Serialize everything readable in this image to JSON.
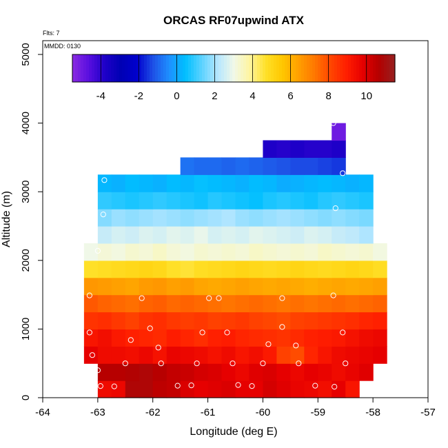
{
  "chart_data": {
    "type": "heatmap",
    "title": "ORCAS RF07upwind ATX",
    "flights_label": "Flts: 7",
    "date_label": "MMDD: 0130",
    "xlabel": "Longitude (deg E)",
    "ylabel": "Altitude (m)",
    "xlim": [
      -64,
      -57
    ],
    "ylim": [
      0,
      5200
    ],
    "x_ticks": [
      "-64",
      "-63",
      "-62",
      "-61",
      "-60",
      "-59",
      "-58",
      "-57"
    ],
    "y_ticks": [
      "0",
      "1000",
      "2000",
      "3000",
      "4000",
      "5000"
    ],
    "colorbar": {
      "range": [
        -5.5,
        11.5
      ],
      "ticks": [
        "-4",
        "-2",
        "0",
        "2",
        "4",
        "6",
        "8",
        "10"
      ],
      "colors": [
        "#8a2be2",
        "#5a0fe0",
        "#1e00c8",
        "#0000b4",
        "#0000cd",
        "#1e50e6",
        "#1e90ff",
        "#00bfff",
        "#5ad2ff",
        "#b4e6ff",
        "#f0f8e8",
        "#fff5a0",
        "#ffe028",
        "#ffc800",
        "#ffa000",
        "#ff7800",
        "#ff4600",
        "#ff1e00",
        "#e60000",
        "#b40000",
        "#962020"
      ]
    },
    "cell_width_deg": 0.25,
    "cell_height_m": 250,
    "rows": [
      {
        "alt": 125,
        "lon_start": -63.0,
        "values": [
          9.5,
          9.6,
          10.8,
          10.8,
          10.5,
          10.4,
          10.0,
          9.8,
          9.9,
          10.0,
          9.8,
          9.8,
          10.1,
          9.9,
          9.7,
          9.6,
          9.4,
          9.8,
          9.2
        ]
      },
      {
        "alt": 375,
        "lon_start": -63.0,
        "values": [
          10.6,
          10.6,
          10.7,
          10.8,
          10.6,
          10.4,
          10.3,
          10.1,
          10.0,
          9.8,
          9.6,
          9.9,
          10.0,
          9.8,
          9.6,
          9.8,
          9.7,
          9.5,
          9.7,
          9.9
        ]
      },
      {
        "alt": 625,
        "lon_start": -63.25,
        "values": [
          9.8,
          9.5,
          9.5,
          9.4,
          9.6,
          9.3,
          9.7,
          9.6,
          9.5,
          9.3,
          9.5,
          9.2,
          9.4,
          9.1,
          8.2,
          8.0,
          8.8,
          9.2,
          9.5,
          9.6,
          9.7,
          9.8
        ]
      },
      {
        "alt": 875,
        "lon_start": -63.25,
        "values": [
          9.2,
          9.4,
          9.1,
          8.9,
          8.8,
          8.7,
          9.0,
          8.8,
          8.6,
          8.9,
          9.0,
          8.8,
          8.7,
          8.6,
          8.5,
          8.7,
          8.9,
          9.0,
          9.1,
          9.3,
          9.5,
          9.6
        ]
      },
      {
        "alt": 1125,
        "lon_start": -63.25,
        "values": [
          8.5,
          8.6,
          8.4,
          8.2,
          8.5,
          8.6,
          8.4,
          8.3,
          8.4,
          8.2,
          8.3,
          8.4,
          8.2,
          8.1,
          8.0,
          8.2,
          8.3,
          8.4,
          8.5,
          8.6,
          8.8,
          8.9
        ]
      },
      {
        "alt": 1375,
        "lon_start": -63.25,
        "values": [
          7.8,
          7.6,
          7.5,
          7.4,
          7.6,
          7.7,
          7.5,
          7.6,
          7.5,
          7.4,
          7.3,
          7.4,
          7.5,
          7.4,
          7.3,
          7.4,
          7.3,
          7.4,
          7.5,
          7.4,
          7.5,
          7.6
        ]
      },
      {
        "alt": 1625,
        "lon_start": -63.25,
        "values": [
          6.6,
          6.5,
          6.4,
          6.3,
          6.5,
          6.6,
          6.4,
          6.5,
          6.3,
          6.2,
          6.3,
          6.4,
          6.3,
          6.2,
          6.3,
          6.2,
          6.1,
          6.2,
          6.3,
          6.2,
          6.3,
          6.4
        ]
      },
      {
        "alt": 1875,
        "lon_start": -63.25,
        "values": [
          4.7,
          4.8,
          4.9,
          5.0,
          5.1,
          5.0,
          4.7,
          4.6,
          4.8,
          4.9,
          5.0,
          5.1,
          5.0,
          4.9,
          5.0,
          5.1,
          5.0,
          4.9,
          5.0,
          5.1,
          5.0,
          4.8
        ]
      },
      {
        "alt": 2125,
        "lon_start": -63.25,
        "values": [
          3.0,
          3.2,
          3.1,
          3.3,
          3.2,
          3.4,
          3.2,
          3.1,
          3.3,
          3.2,
          3.3,
          3.2,
          3.4,
          3.3,
          3.2,
          3.3,
          3.2,
          3.4,
          3.3,
          3.2,
          3.3,
          3.1
        ]
      },
      {
        "alt": 2375,
        "lon_start": -63.0,
        "values": [
          2.4,
          2.6,
          2.5,
          2.7,
          2.6,
          2.8,
          2.7,
          2.9,
          2.6,
          2.7,
          2.6,
          2.8,
          2.7,
          2.6,
          2.5,
          2.7,
          2.6,
          2.4,
          2.3,
          2.1
        ]
      },
      {
        "alt": 2625,
        "lon_start": -63.0,
        "values": [
          1.7,
          1.9,
          1.8,
          1.9,
          2.0,
          1.9,
          1.8,
          1.9,
          2.0,
          2.1,
          1.9,
          1.8,
          1.9,
          2.0,
          1.9,
          1.8,
          1.7,
          1.8,
          1.7,
          1.6
        ]
      },
      {
        "alt": 2875,
        "lon_start": -63.0,
        "values": [
          0.9,
          0.8,
          0.7,
          0.8,
          0.9,
          0.8,
          0.7,
          0.6,
          0.8,
          0.7,
          0.6,
          0.5,
          0.7,
          0.8,
          0.7,
          0.6,
          0.8,
          0.9,
          0.8,
          0.7
        ]
      },
      {
        "alt": 3125,
        "lon_start": -63.0,
        "values": [
          0.3,
          0.2,
          0.4,
          0.3,
          0.2,
          0.4,
          0.3,
          0.5,
          0.4,
          0.3,
          0.2,
          0.4,
          0.3,
          0.1,
          0.2,
          0.3,
          0.4,
          0.3,
          0.2,
          0.3
        ]
      },
      {
        "alt": 3375,
        "lon_start": -61.5,
        "values": [
          -0.8,
          -0.9,
          -0.9,
          -1.0,
          -0.9,
          -1.0,
          -1.1,
          -1.2,
          -1.3,
          -1.3,
          -1.4,
          -1.5
        ]
      },
      {
        "alt": 3625,
        "lon_start": -60.0,
        "values": [
          -3.8,
          -3.9,
          -3.8,
          -3.9,
          -3.9,
          -3.8
        ]
      },
      {
        "alt": 3875,
        "lon_start": -58.75,
        "values": [
          -5.0
        ]
      }
    ],
    "samples": [
      {
        "lon": -62.95,
        "alt": 170
      },
      {
        "lon": -62.7,
        "alt": 165
      },
      {
        "lon": -61.55,
        "alt": 175
      },
      {
        "lon": -61.3,
        "alt": 180
      },
      {
        "lon": -60.45,
        "alt": 185
      },
      {
        "lon": -60.2,
        "alt": 170
      },
      {
        "lon": -59.05,
        "alt": 175
      },
      {
        "lon": -58.7,
        "alt": 160
      },
      {
        "lon": -63.0,
        "alt": 400
      },
      {
        "lon": -62.5,
        "alt": 500
      },
      {
        "lon": -61.85,
        "alt": 500
      },
      {
        "lon": -61.2,
        "alt": 500
      },
      {
        "lon": -60.55,
        "alt": 500
      },
      {
        "lon": -60.0,
        "alt": 500
      },
      {
        "lon": -59.35,
        "alt": 500
      },
      {
        "lon": -58.5,
        "alt": 500
      },
      {
        "lon": -63.1,
        "alt": 620
      },
      {
        "lon": -61.9,
        "alt": 730
      },
      {
        "lon": -59.9,
        "alt": 780
      },
      {
        "lon": -59.4,
        "alt": 760
      },
      {
        "lon": -63.15,
        "alt": 950
      },
      {
        "lon": -62.4,
        "alt": 840
      },
      {
        "lon": -62.05,
        "alt": 1010
      },
      {
        "lon": -61.1,
        "alt": 950
      },
      {
        "lon": -60.65,
        "alt": 950
      },
      {
        "lon": -59.65,
        "alt": 1030
      },
      {
        "lon": -58.55,
        "alt": 950
      },
      {
        "lon": -63.15,
        "alt": 1490
      },
      {
        "lon": -62.2,
        "alt": 1450
      },
      {
        "lon": -60.98,
        "alt": 1450
      },
      {
        "lon": -60.8,
        "alt": 1450
      },
      {
        "lon": -59.65,
        "alt": 1450
      },
      {
        "lon": -58.72,
        "alt": 1490
      },
      {
        "lon": -63.0,
        "alt": 2140
      },
      {
        "lon": -62.9,
        "alt": 2670
      },
      {
        "lon": -58.68,
        "alt": 2760
      },
      {
        "lon": -62.88,
        "alt": 3170
      },
      {
        "lon": -58.55,
        "alt": 3270
      },
      {
        "lon": -58.72,
        "alt": 4000
      }
    ]
  }
}
